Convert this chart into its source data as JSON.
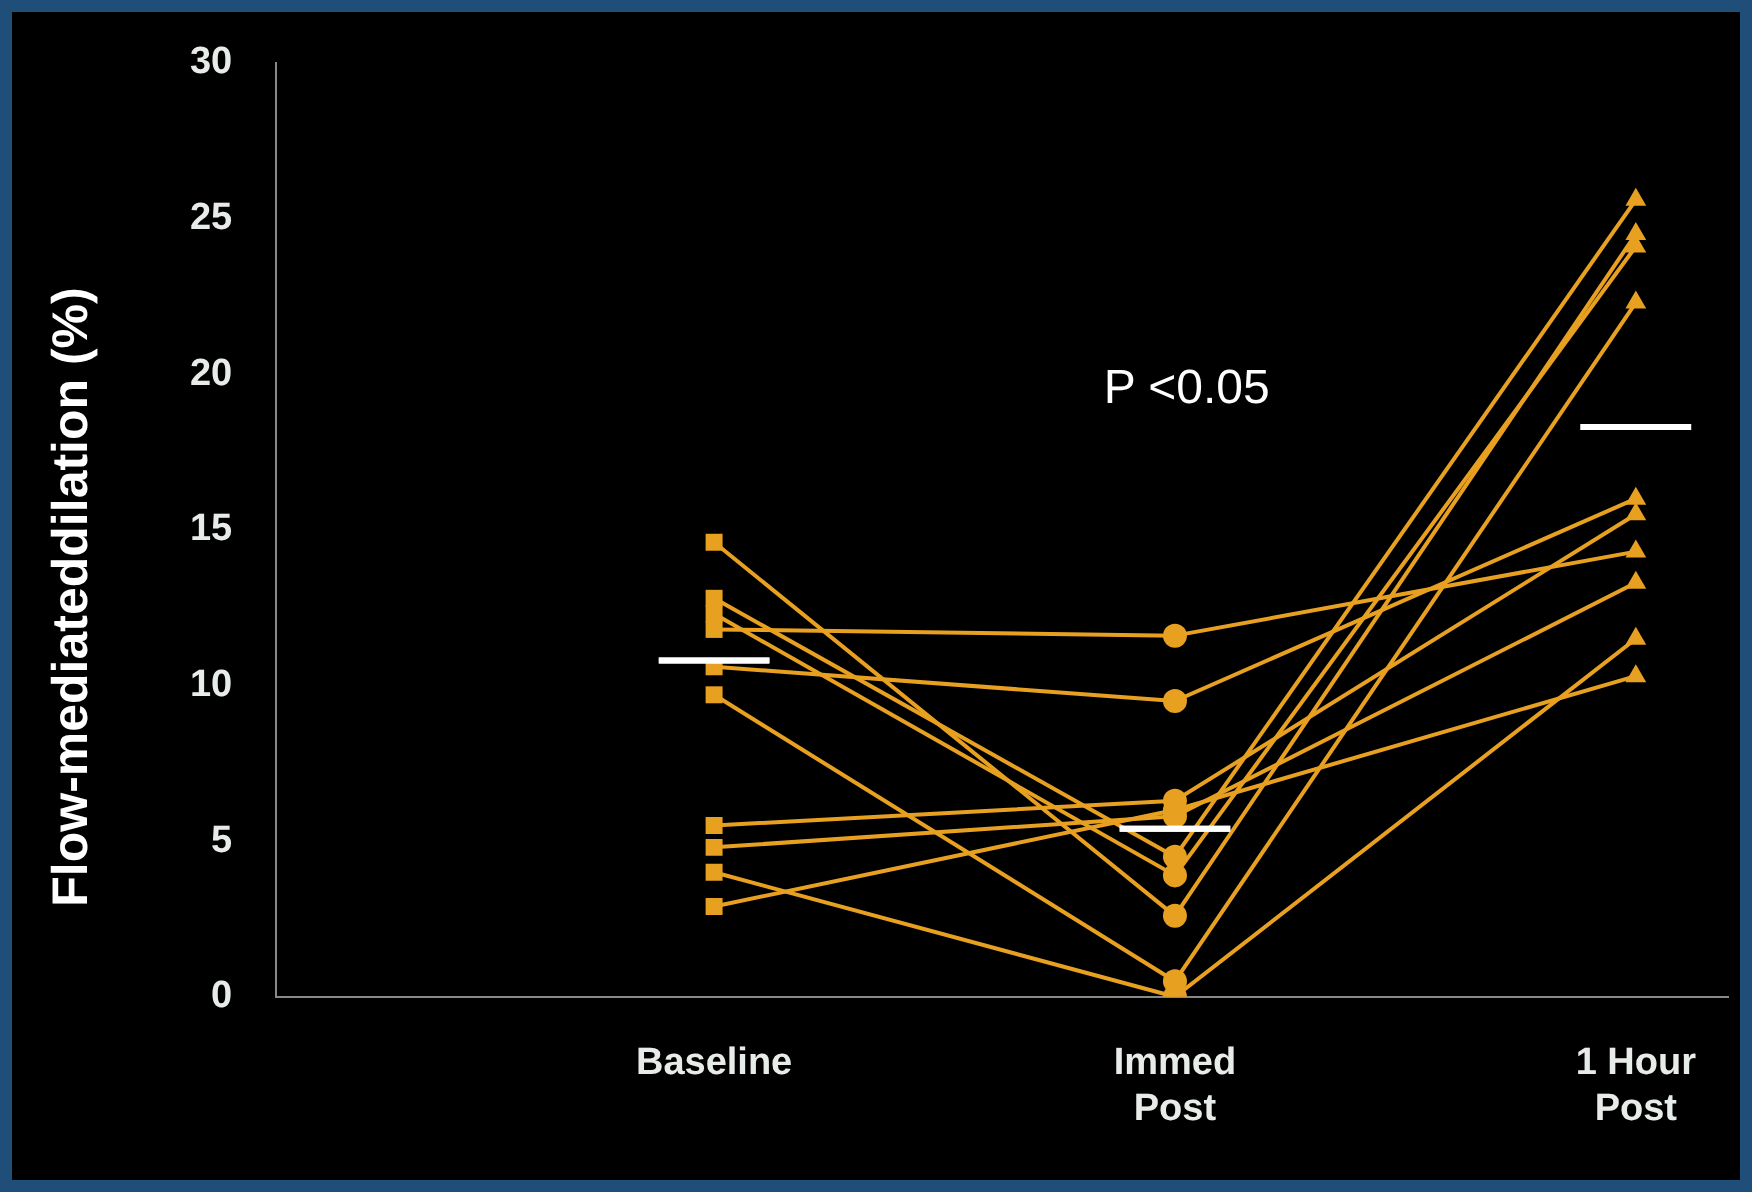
{
  "chart_data": {
    "type": "line",
    "ylabel": "Flow-mediateddilation (%)",
    "categories": [
      "Baseline",
      "Immed Post",
      "1 Hour Post"
    ],
    "ylim": [
      0,
      30
    ],
    "yticks": [
      0,
      5,
      10,
      15,
      20,
      25,
      30
    ],
    "grid": false,
    "legend": false,
    "marker": [
      "square",
      "circle",
      "triangle"
    ],
    "annotations": [
      "P <0.05"
    ],
    "series": [
      {
        "color": "#e8a020",
        "values": [
          14.6,
          2.6,
          24.5
        ]
      },
      {
        "color": "#e8a020",
        "values": [
          12.8,
          4.5,
          25.6
        ]
      },
      {
        "color": "#e8a020",
        "values": [
          11.8,
          11.6,
          14.3
        ]
      },
      {
        "color": "#e8a020",
        "values": [
          10.6,
          9.5,
          16.0
        ]
      },
      {
        "color": "#e8a020",
        "values": [
          12.3,
          3.9,
          24.1
        ]
      },
      {
        "color": "#e8a020",
        "values": [
          9.7,
          0.5,
          22.3
        ]
      },
      {
        "color": "#e8a020",
        "values": [
          5.5,
          6.3,
          15.5
        ]
      },
      {
        "color": "#e8a020",
        "values": [
          4.8,
          5.8,
          13.3
        ]
      },
      {
        "color": "#e8a020",
        "values": [
          4.0,
          0.0,
          11.5
        ]
      },
      {
        "color": "#e8a020",
        "values": [
          2.9,
          6.0,
          10.3
        ]
      },
      {
        "type": "box",
        "color": "#ffffff",
        "boxes": [
          {
            "low": 10.8,
            "q1": 10.8,
            "median": 10.8,
            "q3": 10.8,
            "high": 10.8
          },
          {
            "low": 5.4,
            "q1": 5.4,
            "median": 5.4,
            "q3": 5.4,
            "high": 5.4
          },
          {
            "low": 18.3,
            "q1": 18.3,
            "median": 18.3,
            "q3": 18.3,
            "high": 18.3
          }
        ]
      }
    ]
  }
}
